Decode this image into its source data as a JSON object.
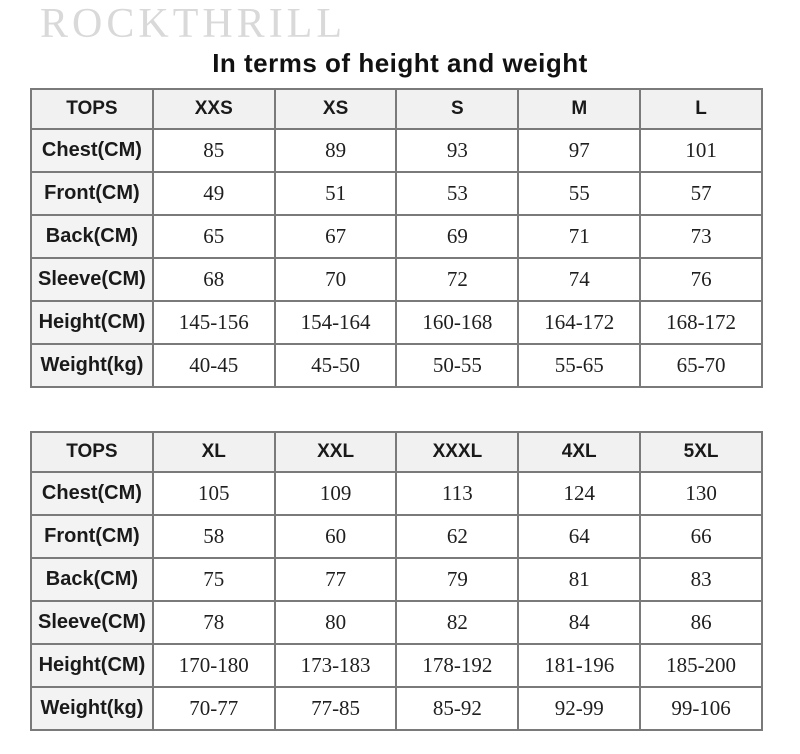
{
  "brand": {
    "logo_text": "ROCKTHRILL"
  },
  "title": "In terms of height and weight",
  "colors": {
    "logo_gray": "#d9d9d9",
    "title_black": "#111111",
    "table_border": "#7a7a7a",
    "table_outer_border": "#5f5f5f",
    "header_background": "#f1f1f1",
    "label_background": "#f3f3f3",
    "cell_background": "#ffffff"
  },
  "chart_data": [
    {
      "type": "table",
      "title": "Tops size chart (XXS - L)",
      "columns": [
        "TOPS",
        "XXS",
        "XS",
        "S",
        "M",
        "L"
      ],
      "rows": [
        [
          "Chest(CM)",
          "85",
          "89",
          "93",
          "97",
          "101"
        ],
        [
          "Front(CM)",
          "49",
          "51",
          "53",
          "55",
          "57"
        ],
        [
          "Back(CM)",
          "65",
          "67",
          "69",
          "71",
          "73"
        ],
        [
          "Sleeve(CM)",
          "68",
          "70",
          "72",
          "74",
          "76"
        ],
        [
          "Height(CM)",
          "145-156",
          "154-164",
          "160-168",
          "164-172",
          "168-172"
        ],
        [
          "Weight(kg)",
          "40-45",
          "45-50",
          "50-55",
          "55-65",
          "65-70"
        ]
      ]
    },
    {
      "type": "table",
      "title": "Tops size chart (XL - 5XL)",
      "columns": [
        "TOPS",
        "XL",
        "XXL",
        "XXXL",
        "4XL",
        "5XL"
      ],
      "rows": [
        [
          "Chest(CM)",
          "105",
          "109",
          "113",
          "124",
          "130"
        ],
        [
          "Front(CM)",
          "58",
          "60",
          "62",
          "64",
          "66"
        ],
        [
          "Back(CM)",
          "75",
          "77",
          "79",
          "81",
          "83"
        ],
        [
          "Sleeve(CM)",
          "78",
          "80",
          "82",
          "84",
          "86"
        ],
        [
          "Height(CM)",
          "170-180",
          "173-183",
          "178-192",
          "181-196",
          "185-200"
        ],
        [
          "Weight(kg)",
          "70-77",
          "77-85",
          "85-92",
          "92-99",
          "99-106"
        ]
      ]
    }
  ]
}
